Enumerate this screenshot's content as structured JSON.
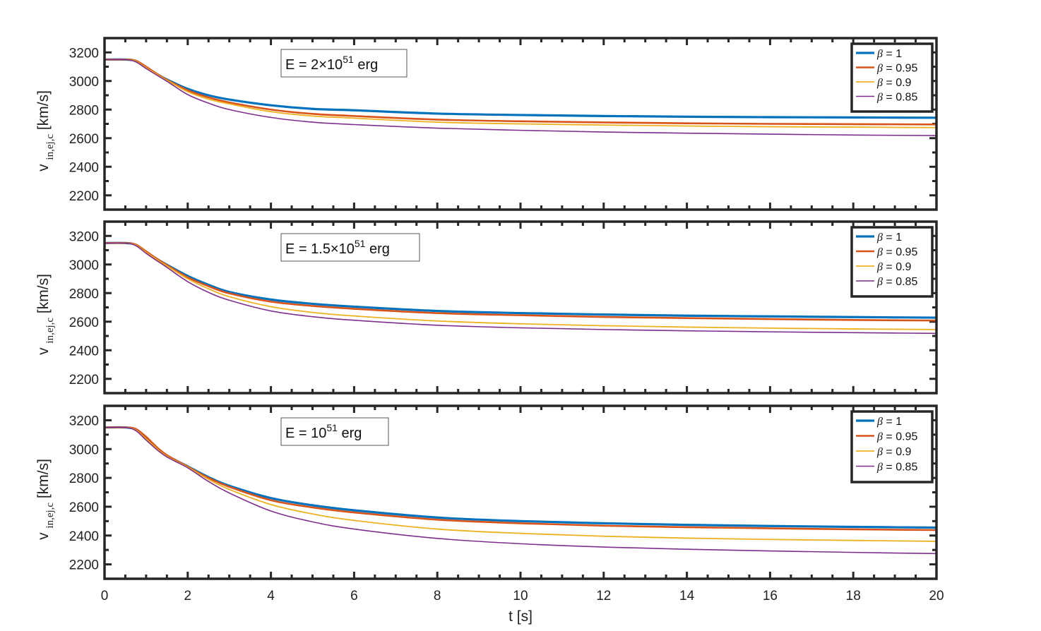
{
  "chart_data": [
    {
      "type": "line",
      "annotation": {
        "prefix": "E = 2×10",
        "exp": "51",
        "suffix": " erg"
      },
      "ylabel": {
        "main": "v",
        "sub": "in,ej,c",
        "unit": "[km/s]"
      },
      "xlim": [
        0,
        20
      ],
      "ylim": [
        2100,
        3300
      ],
      "yticks": [
        2200,
        2400,
        2600,
        2800,
        3000,
        3200
      ],
      "legend_position": "top-right",
      "x": [
        0,
        0.5,
        0.75,
        1.0,
        1.25,
        1.5,
        2,
        2.5,
        3,
        4,
        5,
        6,
        8,
        10,
        12,
        14,
        16,
        18,
        20
      ],
      "series": [
        {
          "name": "β = 1",
          "color": "#0072BD",
          "width": 3.2,
          "values": [
            3150,
            3150,
            3140,
            3095,
            3050,
            3010,
            2945,
            2900,
            2870,
            2830,
            2805,
            2795,
            2772,
            2762,
            2755,
            2750,
            2747,
            2745,
            2743
          ]
        },
        {
          "name": "β = 0.95",
          "color": "#D95319",
          "width": 2.6,
          "values": [
            3150,
            3150,
            3142,
            3100,
            3052,
            3008,
            2935,
            2885,
            2850,
            2800,
            2770,
            2755,
            2730,
            2718,
            2710,
            2704,
            2700,
            2698,
            2696
          ]
        },
        {
          "name": "β = 0.9",
          "color": "#EDB120",
          "width": 1.8,
          "values": [
            3150,
            3150,
            3138,
            3093,
            3048,
            3005,
            2925,
            2873,
            2840,
            2785,
            2755,
            2740,
            2712,
            2700,
            2692,
            2685,
            2680,
            2677,
            2674
          ]
        },
        {
          "name": "β = 0.85",
          "color": "#7E2F8E",
          "width": 1.6,
          "values": [
            3150,
            3150,
            3134,
            3087,
            3042,
            2998,
            2905,
            2845,
            2800,
            2745,
            2712,
            2695,
            2670,
            2655,
            2643,
            2635,
            2628,
            2622,
            2618
          ]
        }
      ]
    },
    {
      "type": "line",
      "annotation": {
        "prefix": "E = 1.5×10",
        "exp": "51",
        "suffix": " erg"
      },
      "ylabel": {
        "main": "v",
        "sub": "in,ej,c",
        "unit": "[km/s]"
      },
      "xlim": [
        0,
        20
      ],
      "ylim": [
        2100,
        3300
      ],
      "yticks": [
        2200,
        2400,
        2600,
        2800,
        3000,
        3200
      ],
      "legend_position": "top-right",
      "x": [
        0,
        0.5,
        0.75,
        1.0,
        1.25,
        1.5,
        2,
        2.5,
        3,
        4,
        5,
        6,
        8,
        10,
        12,
        14,
        16,
        18,
        20
      ],
      "series": [
        {
          "name": "β = 1",
          "color": "#0072BD",
          "width": 3.2,
          "values": [
            3150,
            3150,
            3138,
            3088,
            3040,
            2998,
            2920,
            2858,
            2808,
            2755,
            2725,
            2705,
            2675,
            2660,
            2650,
            2642,
            2637,
            2632,
            2628
          ]
        },
        {
          "name": "β = 0.95",
          "color": "#D95319",
          "width": 2.6,
          "values": [
            3150,
            3150,
            3140,
            3092,
            3042,
            2996,
            2910,
            2848,
            2798,
            2740,
            2710,
            2690,
            2660,
            2645,
            2633,
            2625,
            2618,
            2612,
            2608
          ]
        },
        {
          "name": "β = 0.9",
          "color": "#EDB120",
          "width": 1.8,
          "values": [
            3150,
            3150,
            3136,
            3085,
            3036,
            2990,
            2900,
            2830,
            2775,
            2705,
            2665,
            2640,
            2605,
            2585,
            2572,
            2562,
            2555,
            2549,
            2545
          ]
        },
        {
          "name": "β = 0.85",
          "color": "#7E2F8E",
          "width": 1.6,
          "values": [
            3150,
            3150,
            3132,
            3078,
            3028,
            2980,
            2880,
            2805,
            2750,
            2675,
            2635,
            2610,
            2575,
            2557,
            2545,
            2536,
            2529,
            2523,
            2518
          ]
        }
      ]
    },
    {
      "type": "line",
      "annotation": {
        "prefix": "E = 10",
        "exp": "51",
        "suffix": " erg"
      },
      "ylabel": {
        "main": "v",
        "sub": "in,ej,c",
        "unit": "[km/s]"
      },
      "xlim": [
        0,
        20
      ],
      "ylim": [
        2100,
        3300
      ],
      "yticks": [
        2200,
        2400,
        2600,
        2800,
        3000,
        3200
      ],
      "legend_position": "top-right",
      "xlabel": "t [s]",
      "xticks": [
        0,
        2,
        4,
        6,
        8,
        10,
        12,
        14,
        16,
        18,
        20
      ],
      "x": [
        0,
        0.5,
        0.75,
        1.0,
        1.25,
        1.5,
        2,
        2.5,
        3,
        4,
        5,
        6,
        8,
        10,
        12,
        14,
        16,
        18,
        20
      ],
      "series": [
        {
          "name": "β = 1",
          "color": "#0072BD",
          "width": 3.2,
          "values": [
            3150,
            3150,
            3135,
            3075,
            3010,
            2955,
            2880,
            2805,
            2745,
            2660,
            2610,
            2575,
            2525,
            2500,
            2485,
            2474,
            2466,
            2460,
            2455
          ]
        },
        {
          "name": "β = 0.95",
          "color": "#D95319",
          "width": 2.6,
          "values": [
            3150,
            3150,
            3140,
            3085,
            3015,
            2958,
            2878,
            2800,
            2738,
            2645,
            2595,
            2560,
            2510,
            2485,
            2468,
            2458,
            2450,
            2443,
            2438
          ]
        },
        {
          "name": "β = 0.9",
          "color": "#EDB120",
          "width": 1.8,
          "values": [
            3150,
            3150,
            3132,
            3070,
            3005,
            2950,
            2875,
            2790,
            2720,
            2615,
            2550,
            2505,
            2445,
            2415,
            2395,
            2382,
            2373,
            2366,
            2360
          ]
        },
        {
          "name": "β = 0.85",
          "color": "#7E2F8E",
          "width": 1.6,
          "values": [
            3150,
            3150,
            3128,
            3062,
            2998,
            2945,
            2870,
            2775,
            2695,
            2570,
            2495,
            2445,
            2380,
            2343,
            2320,
            2305,
            2293,
            2283,
            2275
          ]
        }
      ]
    }
  ]
}
